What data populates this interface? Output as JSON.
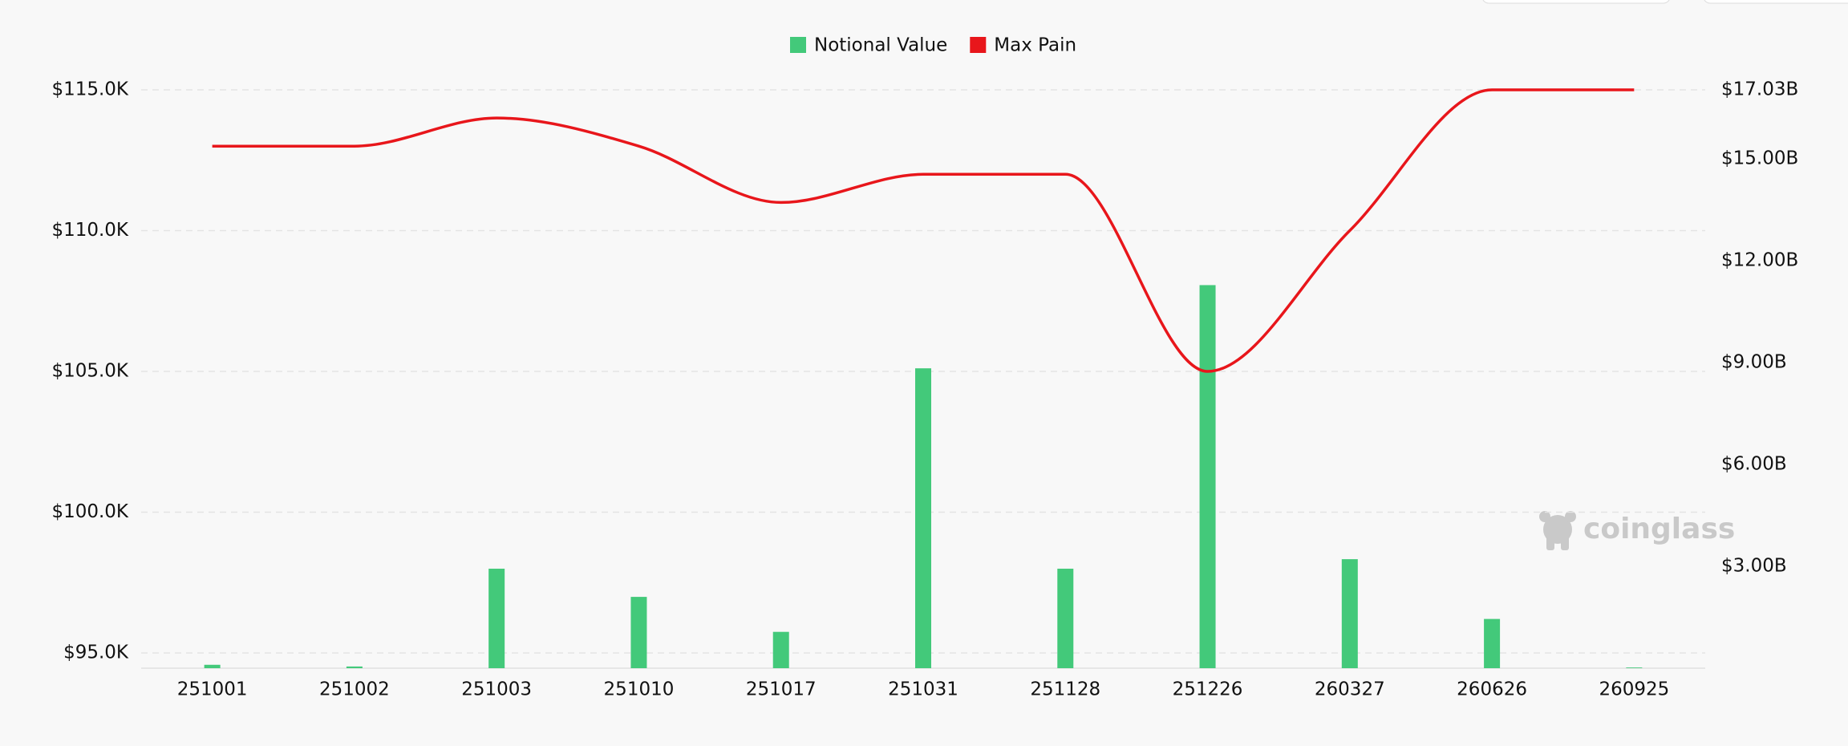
{
  "chart_data": {
    "type": "bar",
    "categories": [
      "251001",
      "251002",
      "251003",
      "251010",
      "251017",
      "251031",
      "251128",
      "251226",
      "260327",
      "260626",
      "260925"
    ],
    "series": [
      {
        "name": "Notional Value",
        "type": "bar",
        "axis": "y2",
        "color": "#43c97a",
        "values": [
          100000000,
          50000000,
          2930000000,
          2100000000,
          1070000000,
          8830000000,
          2930000000,
          11280000000,
          3210000000,
          1450000000,
          20000000
        ]
      },
      {
        "name": "Max Pain",
        "type": "line",
        "axis": "y",
        "color": "#e8161b",
        "values": [
          113000,
          113000,
          114000,
          113000,
          111000,
          112000,
          112000,
          105000,
          110000,
          115000,
          115000
        ]
      }
    ],
    "ylim": [
      94460,
      115000
    ],
    "yticks": [
      {
        "value": 95000,
        "label": "$95.0K"
      },
      {
        "value": 100000,
        "label": "$100.0K"
      },
      {
        "value": 105000,
        "label": "$105.0K"
      },
      {
        "value": 110000,
        "label": "$110.0K"
      },
      {
        "value": 115000,
        "label": "$115.0K"
      }
    ],
    "y2lim": [
      0,
      17030000000
    ],
    "y2ticks": [
      {
        "value": 3000000000,
        "label": "$3.00B"
      },
      {
        "value": 6000000000,
        "label": "$6.00B"
      },
      {
        "value": 9000000000,
        "label": "$9.00B"
      },
      {
        "value": 12000000000,
        "label": "$12.00B"
      },
      {
        "value": 15000000000,
        "label": "$15.00B"
      },
      {
        "value": 17030000000,
        "label": "$17.03B"
      }
    ],
    "grid": true,
    "legend": "top",
    "watermark": "coinglass"
  }
}
